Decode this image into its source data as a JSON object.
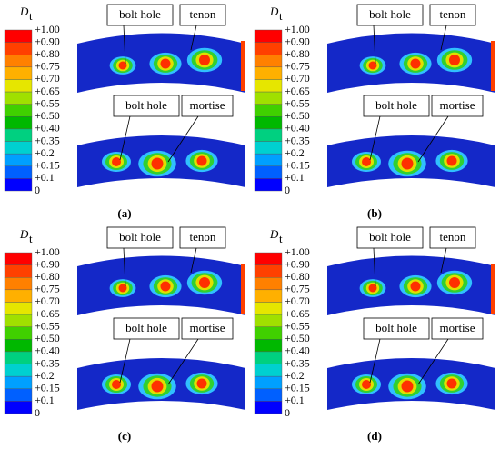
{
  "panels": [
    {
      "label": "(a)",
      "legend": {
        "symbol": "D",
        "subscript": "t",
        "labels": [
          "+1.00",
          "+0.90",
          "+0.80",
          "+0.75",
          "+0.70",
          "+0.65",
          "+0.55",
          "+0.50",
          "+0.40",
          "+0.35",
          "+0.2",
          "+0.15",
          "+0.1",
          "0"
        ]
      },
      "callouts": [
        "bolt hole",
        "tenon",
        "bolt hole",
        "mortise"
      ]
    },
    {
      "label": "(b)",
      "legend": {
        "symbol": "D",
        "subscript": "t",
        "labels": [
          "+1.00",
          "+0.90",
          "+0.80",
          "+0.75",
          "+0.70",
          "+0.65",
          "+0.55",
          "+0.50",
          "+0.40",
          "+0.35",
          "+0.2",
          "+0.15",
          "+0.1",
          "0"
        ]
      },
      "callouts": [
        "bolt hole",
        "tenon",
        "bolt hole",
        "mortise"
      ]
    },
    {
      "label": "(c)",
      "legend": {
        "symbol": "D",
        "subscript": "t",
        "labels": [
          "+1.00",
          "+0.90",
          "+0.80",
          "+0.75",
          "+0.70",
          "+0.65",
          "+0.55",
          "+0.50",
          "+0.40",
          "+0.35",
          "+0.2",
          "+0.15",
          "+0.1",
          "0"
        ]
      },
      "callouts": [
        "bolt hole",
        "tenon",
        "bolt hole",
        "mortise"
      ]
    },
    {
      "label": "(d)",
      "legend": {
        "symbol": "D",
        "subscript": "t",
        "labels": [
          "+1.00",
          "+0.90",
          "+0.80",
          "+0.75",
          "+0.70",
          "+0.65",
          "+0.55",
          "+0.50",
          "+0.40",
          "+0.35",
          "+0.2",
          "+0.15",
          "+0.1",
          "0"
        ]
      },
      "callouts": [
        "bolt hole",
        "tenon",
        "bolt hole",
        "mortise"
      ]
    }
  ]
}
